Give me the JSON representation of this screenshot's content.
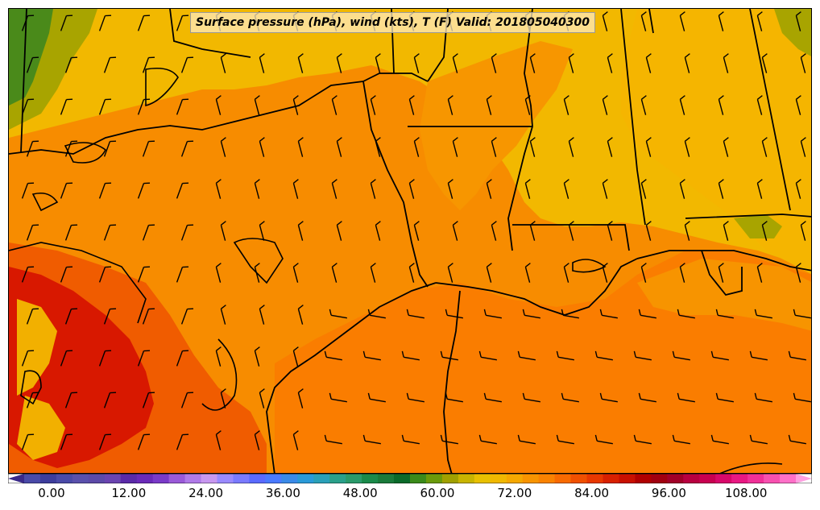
{
  "map": {
    "title": "Surface pressure (hPa), wind (kts), T (F) Valid: 201805040300",
    "colorbar": {
      "ticks": [
        "0.00",
        "12.00",
        "24.00",
        "36.00",
        "48.00",
        "60.00",
        "72.00",
        "84.00",
        "96.00",
        "108.00"
      ],
      "colors": [
        "#4a4aa8",
        "#3d3d9c",
        "#4a4aa8",
        "#5a50ac",
        "#5c4aa8",
        "#6a44b0",
        "#5a2aa8",
        "#6a2ab8",
        "#7a3ac8",
        "#9a5ad8",
        "#b07ae8",
        "#c898f0",
        "#9a8aff",
        "#7a7aff",
        "#5a6aff",
        "#4a7aff",
        "#3a8ae8",
        "#2a9ad8",
        "#2aa0b8",
        "#2aa08a",
        "#2a9a6a",
        "#1a8a4a",
        "#1a7a3a",
        "#0a6a2a",
        "#3a8a1a",
        "#6a9a0a",
        "#a0a000",
        "#c8b400",
        "#e8c000",
        "#f0b800",
        "#f5a800",
        "#f89400",
        "#fa8200",
        "#f86a00",
        "#f05000",
        "#e83800",
        "#d82000",
        "#c81000",
        "#b00000",
        "#a00010",
        "#a00028",
        "#b80040",
        "#c80050",
        "#d8086a",
        "#e81882",
        "#f03098",
        "#f850b0",
        "#ff70c8"
      ],
      "under_color": "#3a2a8a",
      "over_color": "#ffa0e0"
    },
    "palette": {
      "gulf": "#fa7d00",
      "land_warm": "#f58f00",
      "land_hot": "#f05a00",
      "land_mild": "#f7a400",
      "land_cool": "#f0bc00",
      "olive": "#a8a000",
      "green": "#4a8a1a",
      "red": "#d81800",
      "border": "#000000"
    }
  }
}
